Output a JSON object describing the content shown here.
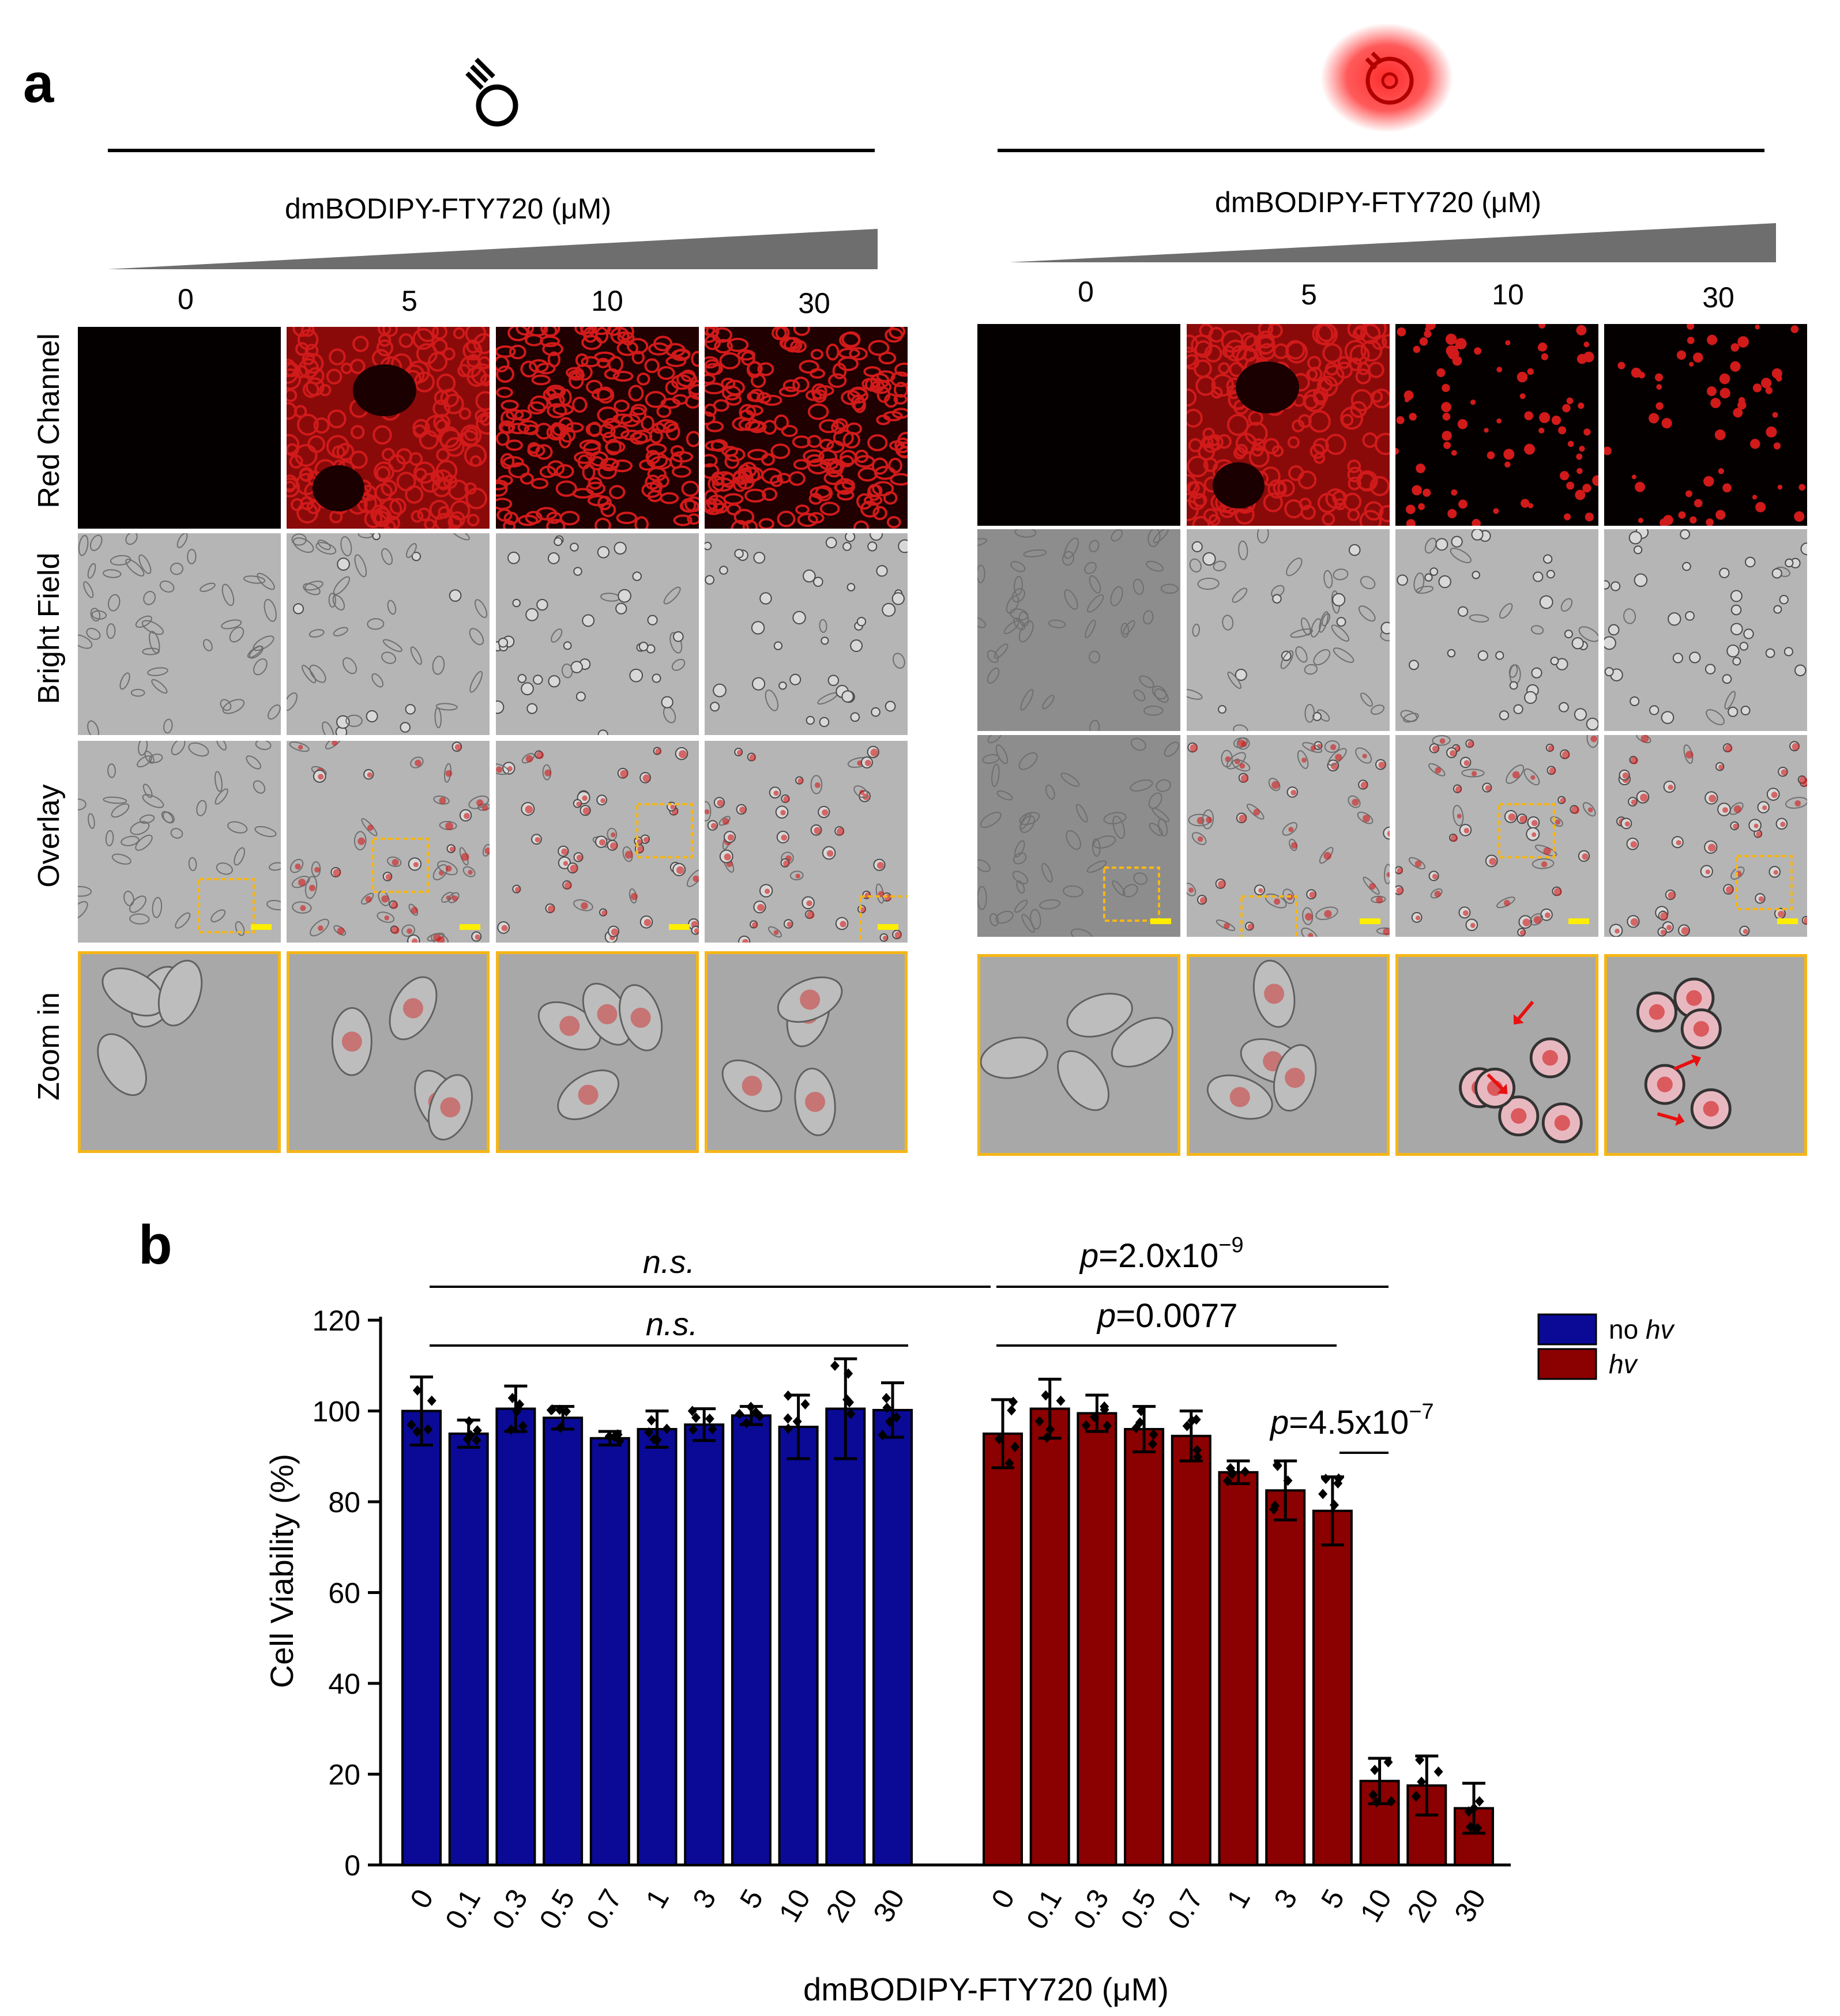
{
  "panel_a": {
    "letter": "a",
    "groups": [
      {
        "condition": "dark",
        "icon": "lightbulb-off-icon",
        "gradient_label": "dmBODIPY-FTY720 (μM)",
        "concentrations": [
          "0",
          "5",
          "10",
          "30"
        ]
      },
      {
        "condition": "light",
        "icon": "lightbulb-on-icon",
        "gradient_label": "dmBODIPY-FTY720 (μM)",
        "concentrations": [
          "0",
          "5",
          "10",
          "30"
        ]
      }
    ],
    "row_labels": [
      "Red Channel",
      "Bright Field",
      "Overlay",
      "Zoom in"
    ],
    "colors": {
      "red": "#d11a1a",
      "zoom_box": "#f5b617",
      "scale_bar": "#ffee00",
      "arrow": "#e81010"
    }
  },
  "panel_b": {
    "letter": "b",
    "colors": {
      "no_hv": "#0a0a96",
      "hv": "#8b0000"
    },
    "legend": [
      {
        "prefix": "no ",
        "italic": "hv"
      },
      {
        "prefix": "",
        "italic": "hv"
      }
    ],
    "annotations": {
      "ns_top": "n.s.",
      "ns_inner": "n.s.",
      "p1_prefix": "p",
      "p1_value": "=2.0x10",
      "p1_exp": "−9",
      "p2_prefix": "p",
      "p2_value": "=0.0077",
      "p3_prefix": "p",
      "p3_value": "=4.5x10",
      "p3_exp": "−7"
    }
  },
  "chart_data": {
    "type": "bar",
    "title": "",
    "xlabel": "dmBODIPY-FTY720 (μM)",
    "ylabel": "Cell Viability (%)",
    "ylim": [
      0,
      120
    ],
    "yticks": [
      0,
      20,
      40,
      60,
      80,
      100,
      120
    ],
    "series": [
      {
        "name": "no hv",
        "categories": [
          "0",
          "0.1",
          "0.3",
          "0.5",
          "0.7",
          "1",
          "3",
          "5",
          "10",
          "20",
          "30"
        ],
        "values": [
          100,
          95,
          100.5,
          98.5,
          94,
          96,
          97,
          99,
          96.5,
          100.5,
          100.2
        ],
        "errors": [
          7.5,
          3,
          5,
          2.5,
          1.5,
          4,
          3.5,
          2,
          7,
          11,
          6
        ]
      },
      {
        "name": "hv",
        "categories": [
          "0",
          "0.1",
          "0.3",
          "0.5",
          "0.7",
          "1",
          "3",
          "5",
          "10",
          "20",
          "30"
        ],
        "values": [
          95,
          100.5,
          99.5,
          96,
          94.5,
          86.5,
          82.5,
          78,
          18.5,
          17.5,
          12.5
        ],
        "errors": [
          7.5,
          6.5,
          4,
          5,
          5.5,
          2.5,
          6.5,
          7.5,
          5,
          6.5,
          5.5
        ]
      }
    ],
    "legend_position": "top-right"
  }
}
